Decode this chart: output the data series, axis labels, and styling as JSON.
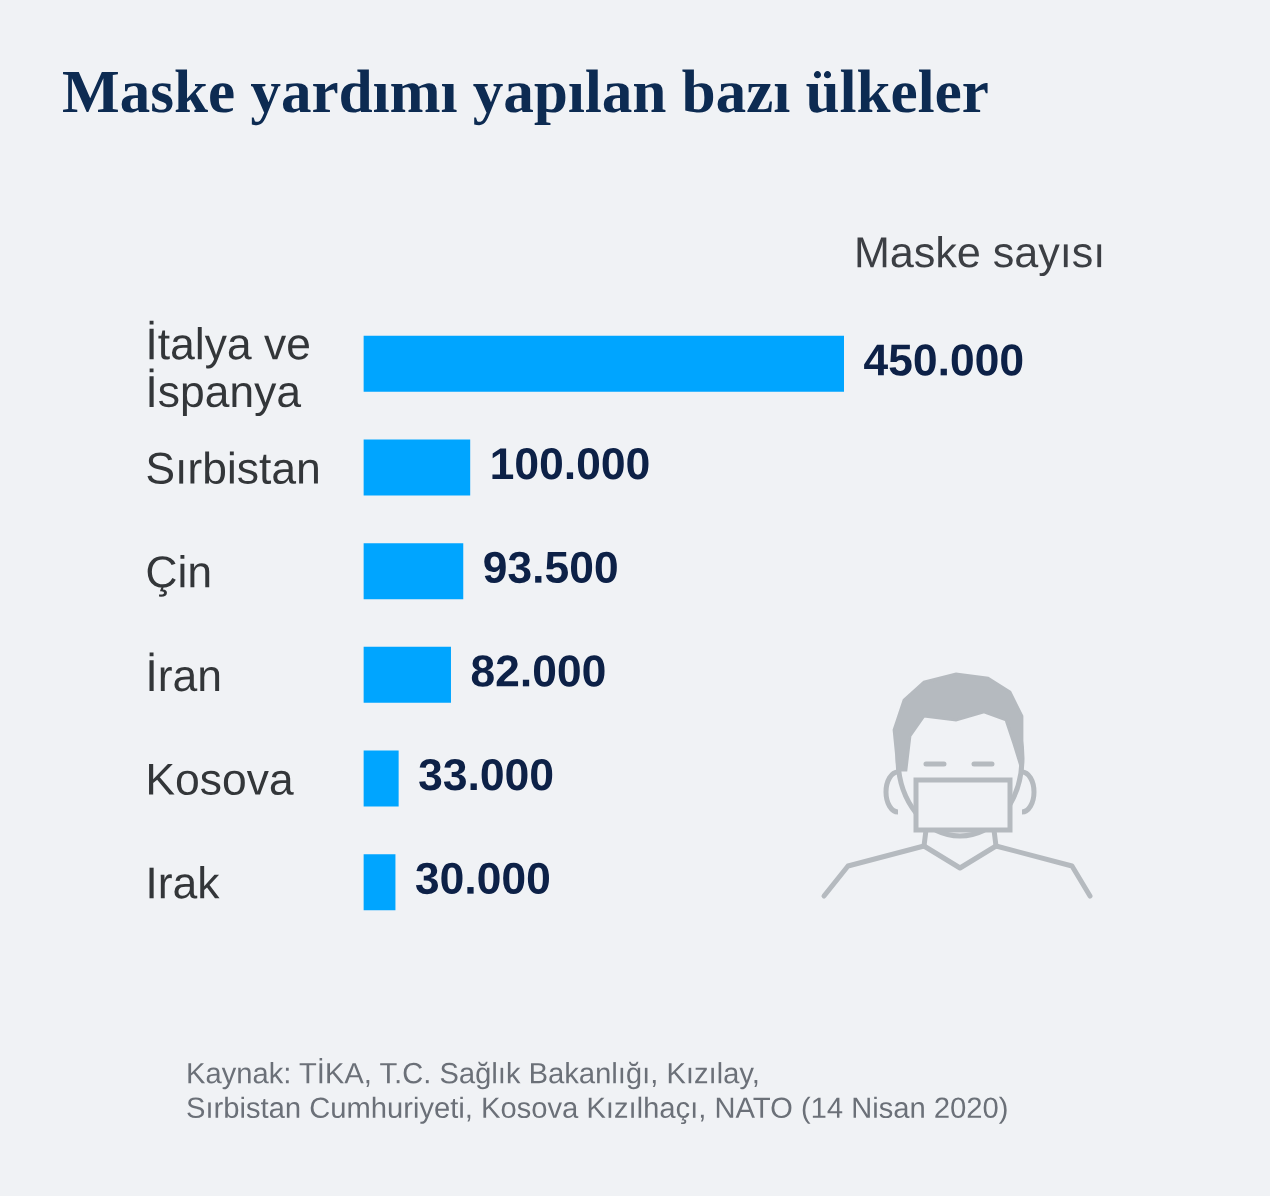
{
  "chart_data": {
    "type": "bar",
    "orientation": "horizontal",
    "title": "Maske yardımı yapılan bazı ülkeler",
    "xlabel": "Maske sayısı",
    "categories": [
      "İtalya ve\nİspanya",
      "Sırbistan",
      "Çin",
      "İran",
      "Kosova",
      "Irak"
    ],
    "values": [
      450000,
      100000,
      93500,
      82000,
      33000,
      30000
    ],
    "value_labels": [
      "450.000",
      "100.000",
      "93.500",
      "82.000",
      "33.000",
      "30.000"
    ],
    "color": "#00a5ff",
    "annotations": [
      "Kaynak: TİKA, T.C. Sağlık Bakanlığı, Kızılay,\nSırbistan Cumhuriyeti, Kosova Kızılhaçı, NATO (14 Nisan 2020)"
    ]
  }
}
